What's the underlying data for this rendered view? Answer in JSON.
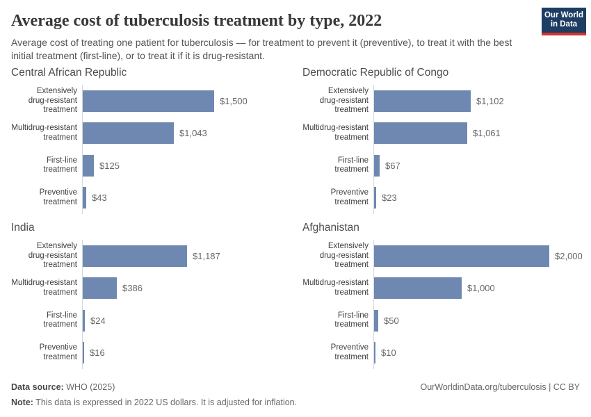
{
  "header": {
    "title": "Average cost of tuberculosis treatment by type, 2022",
    "subtitle": "Average cost of treating one patient for tuberculosis — for treatment to prevent it (preventive), to treat it with the best initial treatment (first-line), or to treat it if it is drug-resistant.",
    "logo": {
      "line1": "Our World",
      "line2": "in Data"
    }
  },
  "chart_data": {
    "type": "bar",
    "orientation": "horizontal",
    "unit": "US$",
    "xlim": [
      0,
      2000
    ],
    "grid": false,
    "legend": "none",
    "categories": [
      "Extensively drug-resistant treatment",
      "Multidrug-resistant treatment",
      "First-line treatment",
      "Preventive treatment"
    ],
    "categories_display": [
      "Extensively\ndrug-resistant\ntreatment",
      "Multidrug-resistant\ntreatment",
      "First-line treatment",
      "Preventive\ntreatment"
    ],
    "panels": [
      {
        "title": "Central African Republic",
        "values": [
          1500,
          1043,
          125,
          43
        ],
        "value_labels": [
          "$1,500",
          "$1,043",
          "$125",
          "$43"
        ]
      },
      {
        "title": "Democratic Republic of Congo",
        "values": [
          1102,
          1061,
          67,
          23
        ],
        "value_labels": [
          "$1,102",
          "$1,061",
          "$67",
          "$23"
        ]
      },
      {
        "title": "India",
        "values": [
          1187,
          386,
          24,
          16
        ],
        "value_labels": [
          "$1,187",
          "$386",
          "$24",
          "$16"
        ]
      },
      {
        "title": "Afghanistan",
        "values": [
          2000,
          1000,
          50,
          10
        ],
        "value_labels": [
          "$2,000",
          "$1,000",
          "$50",
          "$10"
        ]
      }
    ]
  },
  "colors": {
    "bar": "#6e88b1",
    "axis_line": "#d3d8dd",
    "logo_background": "#1d3d63",
    "logo_accent": "#d0342c"
  },
  "footer": {
    "source_label": "Data source:",
    "source_text": " WHO (2025)",
    "note_label": "Note:",
    "note_text": " This data is expressed in 2022 US dollars. It is adjusted for inflation.",
    "link": "OurWorldinData.org/tuberculosis | CC BY"
  }
}
